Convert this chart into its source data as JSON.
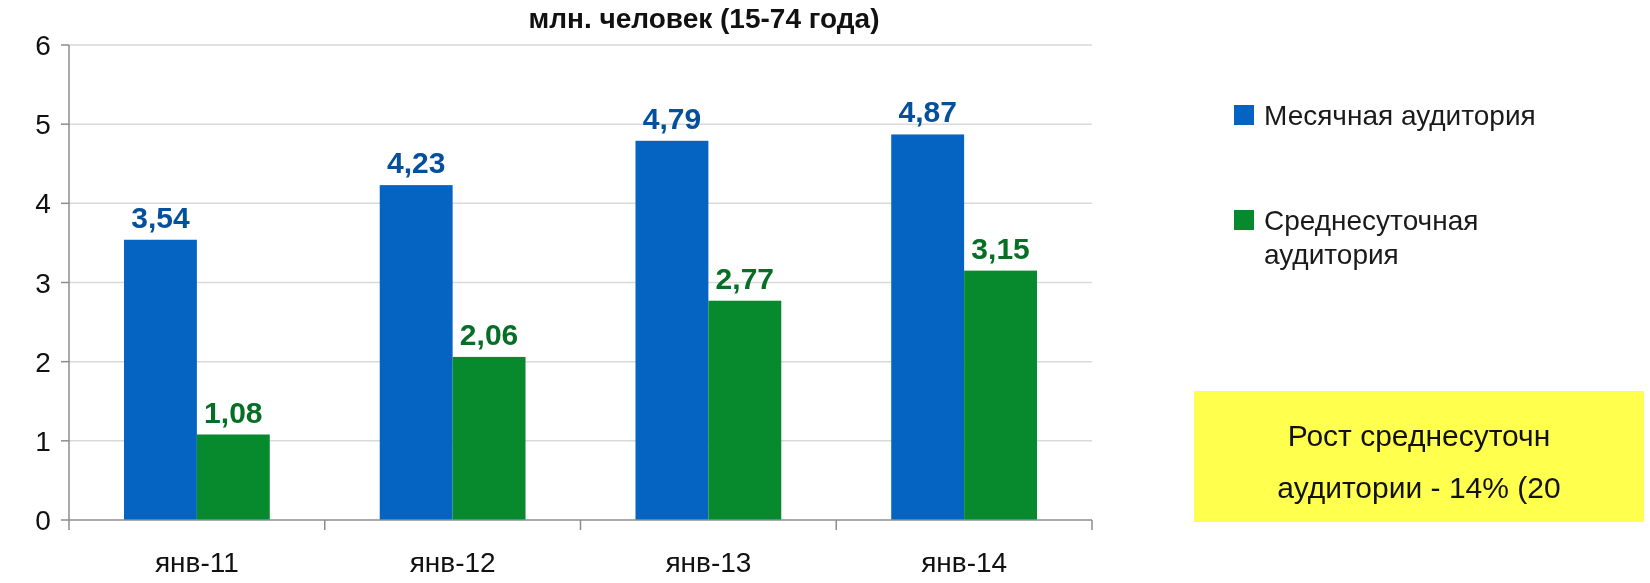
{
  "chart_data": {
    "type": "bar",
    "title": "млн. человек (15-74 года)",
    "categories": [
      "янв-11",
      "янв-12",
      "янв-13",
      "янв-14"
    ],
    "series": [
      {
        "name": "Месячная аудитория",
        "color": "#0563c1",
        "values": [
          3.54,
          4.23,
          4.79,
          4.87
        ],
        "value_labels": [
          "3,54",
          "4,23",
          "4,79",
          "4,87"
        ]
      },
      {
        "name": "Среднесуточная аудитория",
        "color": "#078a2e",
        "values": [
          1.08,
          2.06,
          2.77,
          3.15
        ],
        "value_labels": [
          "1,08",
          "2,06",
          "2,77",
          "3,15"
        ]
      }
    ],
    "ylim": [
      0,
      6
    ],
    "yticks": [
      0,
      1,
      2,
      3,
      4,
      5,
      6
    ],
    "grid": "y",
    "legend": "right",
    "annotations": [
      "Рост среднесуточн\nаудитории - 14% (20"
    ]
  }
}
